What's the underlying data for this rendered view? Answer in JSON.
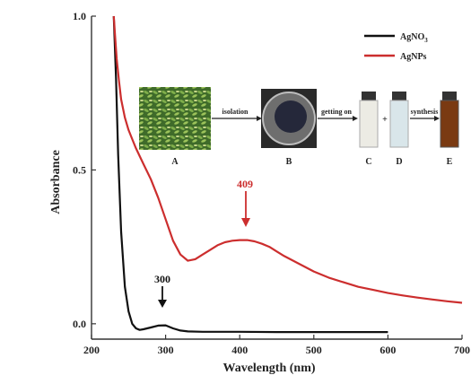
{
  "chart_data": {
    "type": "line",
    "title": "",
    "xlabel": "Wavelength (nm)",
    "ylabel": "Absorbance",
    "xlim": [
      200,
      700
    ],
    "ylim": [
      -0.05,
      1.0
    ],
    "xticks": [
      "200",
      "300",
      "400",
      "500",
      "600",
      "700"
    ],
    "yticks": [
      "0.0",
      "0.5",
      "1.0"
    ],
    "xtick_values": [
      200,
      300,
      400,
      500,
      600,
      700
    ],
    "ytick_values": [
      0.0,
      0.5,
      1.0
    ],
    "grid": false,
    "legend_position": "top-right",
    "series": [
      {
        "name": "AgNO",
        "name_subscript": "3",
        "color": "#111111",
        "x": [
          230,
          233,
          236,
          240,
          245,
          250,
          255,
          260,
          265,
          270,
          280,
          290,
          300,
          310,
          320,
          330,
          350,
          400,
          450,
          500,
          550,
          600
        ],
        "y": [
          1.0,
          0.8,
          0.55,
          0.3,
          0.12,
          0.04,
          0.0,
          -0.015,
          -0.02,
          -0.018,
          -0.012,
          -0.006,
          -0.005,
          -0.015,
          -0.022,
          -0.025,
          -0.026,
          -0.026,
          -0.027,
          -0.027,
          -0.027,
          -0.027
        ]
      },
      {
        "name": "AgNPs",
        "color": "#cc2e2e",
        "x": [
          230,
          232,
          234,
          237,
          240,
          245,
          250,
          255,
          260,
          270,
          280,
          290,
          300,
          310,
          320,
          330,
          340,
          350,
          360,
          370,
          380,
          390,
          400,
          410,
          420,
          430,
          440,
          450,
          460,
          480,
          500,
          520,
          540,
          560,
          580,
          600,
          620,
          640,
          660,
          680,
          700
        ],
        "y": [
          1.0,
          0.93,
          0.86,
          0.79,
          0.73,
          0.67,
          0.63,
          0.6,
          0.57,
          0.52,
          0.47,
          0.41,
          0.34,
          0.27,
          0.225,
          0.205,
          0.21,
          0.225,
          0.24,
          0.255,
          0.265,
          0.27,
          0.272,
          0.272,
          0.268,
          0.26,
          0.25,
          0.235,
          0.22,
          0.195,
          0.17,
          0.15,
          0.135,
          0.12,
          0.11,
          0.1,
          0.092,
          0.085,
          0.079,
          0.073,
          0.068
        ]
      }
    ],
    "annotations": [
      {
        "text": "300",
        "x": 300,
        "y": -0.005,
        "color": "#111111"
      },
      {
        "text": "409",
        "x": 409,
        "y": 0.272,
        "color": "#cc2e2e"
      }
    ],
    "inset": {
      "step1": "isolation",
      "step2": "getting on",
      "step3": "synthesis",
      "plus": "+",
      "labels": [
        "A",
        "B",
        "C",
        "D",
        "E"
      ]
    }
  }
}
